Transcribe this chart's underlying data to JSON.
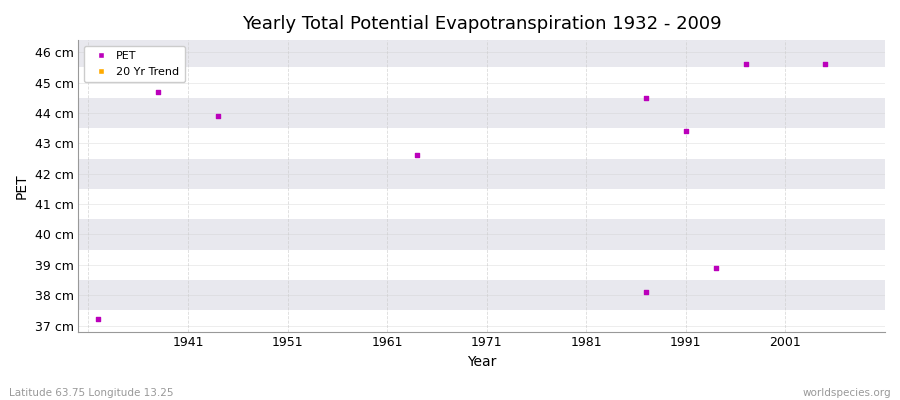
{
  "title": "Yearly Total Potential Evapotranspiration 1932 - 2009",
  "xlabel": "Year",
  "ylabel": "PET",
  "subtitle_left": "Latitude 63.75 Longitude 13.25",
  "subtitle_right": "worldspecies.org",
  "pet_data": [
    [
      1932,
      37.2
    ],
    [
      1938,
      44.7
    ],
    [
      1944,
      43.9
    ],
    [
      1964,
      42.6
    ],
    [
      1987,
      38.1
    ],
    [
      1987,
      44.5
    ],
    [
      1991,
      43.4
    ],
    [
      1994,
      38.9
    ],
    [
      1997,
      45.6
    ],
    [
      2005,
      45.6
    ]
  ],
  "pet_color": "#bb00bb",
  "trend_color": "#ffaa00",
  "ylim": [
    36.8,
    46.4
  ],
  "xlim": [
    1930,
    2011
  ],
  "ytick_labels": [
    "37 cm",
    "38 cm",
    "39 cm",
    "40 cm",
    "41 cm",
    "42 cm",
    "43 cm",
    "44 cm",
    "45 cm",
    "46 cm"
  ],
  "ytick_values": [
    37,
    38,
    39,
    40,
    41,
    42,
    43,
    44,
    45,
    46
  ],
  "xtick_values": [
    1931,
    1941,
    1951,
    1961,
    1971,
    1981,
    1991,
    2001
  ],
  "xtick_labels": [
    "",
    "1941",
    "1951",
    "1961",
    "1971",
    "1981",
    "1991",
    "2001"
  ],
  "band_color_light": "#ffffff",
  "band_color_dark": "#e8e8ee",
  "grid_color_x": "#cccccc",
  "grid_color_y": "#cccccc",
  "bg_color": "#ffffff",
  "title_fontsize": 13,
  "axis_fontsize": 9,
  "legend_fontsize": 8,
  "marker_size": 3
}
